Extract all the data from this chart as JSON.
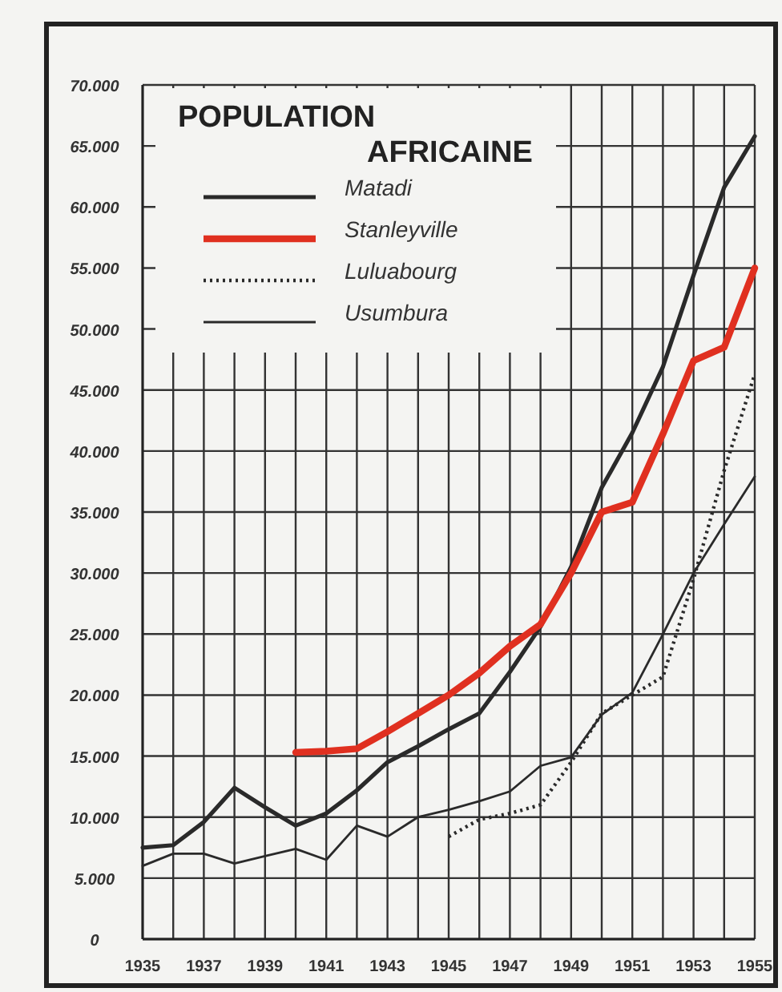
{
  "chart_data": {
    "type": "line",
    "title": "POPULATION AFRICAINE",
    "x": [
      1935,
      1936,
      1937,
      1938,
      1939,
      1940,
      1941,
      1942,
      1943,
      1944,
      1945,
      1946,
      1947,
      1948,
      1949,
      1950,
      1951,
      1952,
      1953,
      1954,
      1955
    ],
    "series": [
      {
        "name": "Matadi",
        "color": "#2a2a2a",
        "line_style": "solid",
        "values": [
          7500,
          7700,
          9600,
          12400,
          10800,
          9300,
          10300,
          12200,
          14500,
          15800,
          17200,
          18500,
          21900,
          25600,
          30500,
          37000,
          41500,
          46900,
          54400,
          61600,
          65800
        ]
      },
      {
        "name": "Stanleyville",
        "color": "#e03020",
        "line_style": "solid",
        "values": [
          null,
          null,
          null,
          null,
          null,
          15300,
          15400,
          15600,
          17000,
          18500,
          20000,
          21800,
          24000,
          25800,
          30000,
          35000,
          35800,
          41400,
          47400,
          48500,
          55000
        ]
      },
      {
        "name": "Luluabourg",
        "color": "#2a2a2a",
        "line_style": "dotted",
        "values": [
          null,
          null,
          null,
          null,
          null,
          null,
          null,
          null,
          null,
          null,
          8400,
          9800,
          10300,
          11000,
          14500,
          18500,
          20000,
          21500,
          29500,
          38400,
          46300
        ]
      },
      {
        "name": "Usumbura",
        "color": "#2a2a2a",
        "line_style": "solid",
        "values": [
          6000,
          7000,
          7000,
          6200,
          6800,
          7400,
          6500,
          9300,
          8400,
          10000,
          10600,
          11300,
          12100,
          14200,
          14900,
          18400,
          20200,
          25000,
          30000,
          34000,
          37900
        ]
      }
    ],
    "xlim": [
      1935,
      1955
    ],
    "xticks": [
      1935,
      {
        "value": 1936,
        "label": null
      },
      1937,
      {
        "value": 1938,
        "label": null
      },
      1939,
      {
        "value": 1940,
        "label": null
      },
      1941,
      {
        "value": 1942,
        "label": null
      },
      1943,
      {
        "value": 1944,
        "label": null
      },
      1945,
      {
        "value": 1946,
        "label": null
      },
      1947,
      {
        "value": 1948,
        "label": null
      },
      1949,
      {
        "value": 1950,
        "label": null
      },
      1951,
      {
        "value": 1952,
        "label": null
      },
      1953,
      {
        "value": 1954,
        "label": null
      },
      1955
    ],
    "ylim": [
      0,
      70000
    ],
    "yticks": [
      0,
      {
        "value": 5000,
        "label": "5.000"
      },
      {
        "value": 10000,
        "label": "10.000"
      },
      {
        "value": 15000,
        "label": "15.000"
      },
      {
        "value": 20000,
        "label": "20.000"
      },
      {
        "value": 25000,
        "label": "25.000"
      },
      {
        "value": 30000,
        "label": "30.000"
      },
      {
        "value": 35000,
        "label": "35.000"
      },
      {
        "value": 40000,
        "label": "40.000"
      },
      {
        "value": 45000,
        "label": "45.000"
      },
      {
        "value": 50000,
        "label": "50.000"
      },
      {
        "value": 55000,
        "label": "55.000"
      },
      {
        "value": 60000,
        "label": "60.000"
      },
      {
        "value": 65000,
        "label": "65.000"
      },
      {
        "value": 70000,
        "label": "70.000"
      }
    ],
    "grid": true,
    "legend": "top left"
  }
}
